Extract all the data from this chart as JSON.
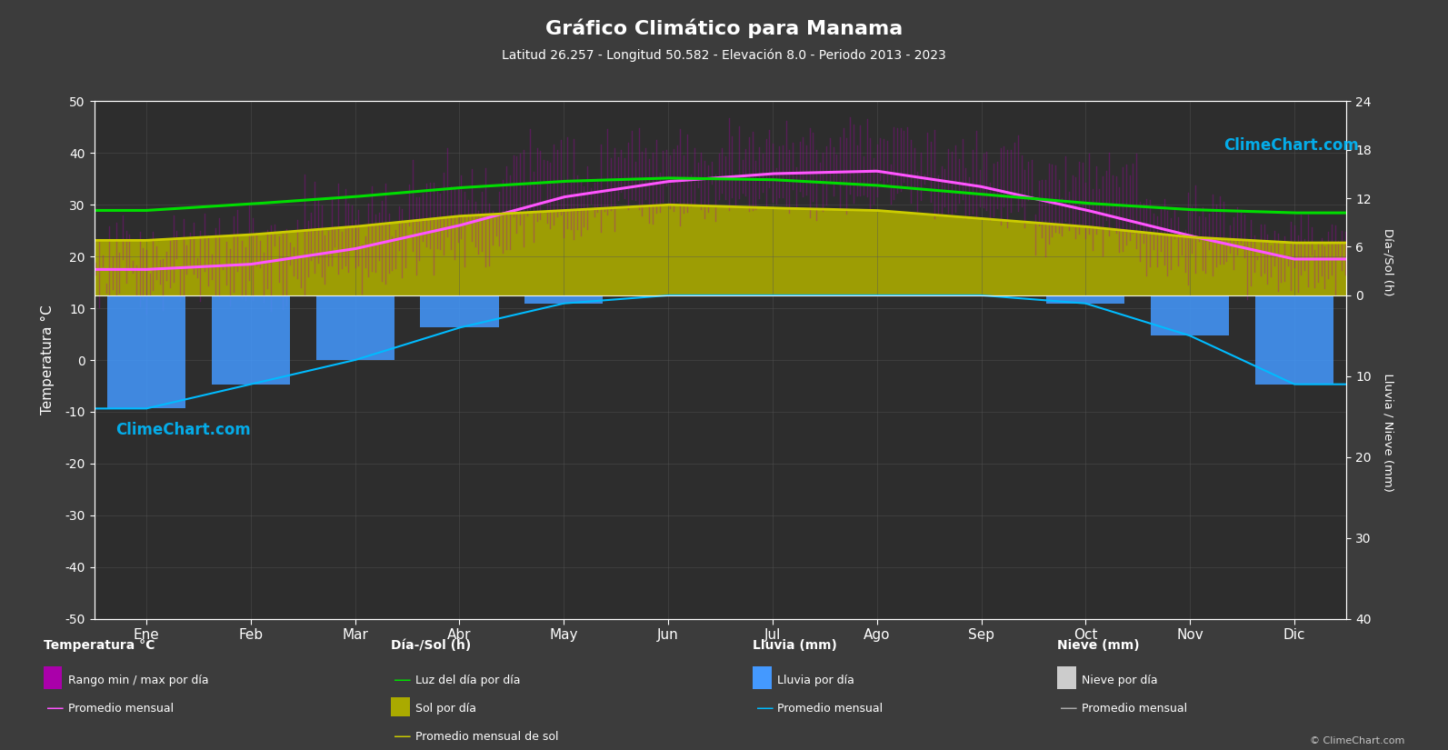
{
  "title": "Gráfico Climático para Manama",
  "subtitle": "Latitud 26.257 - Longitud 50.582 - Elevación 8.0 - Periodo 2013 - 2023",
  "months": [
    "Ene",
    "Feb",
    "Mar",
    "Abr",
    "May",
    "Jun",
    "Jul",
    "Ago",
    "Sep",
    "Oct",
    "Nov",
    "Dic"
  ],
  "temp_avg": [
    17.5,
    18.5,
    21.5,
    26.0,
    31.5,
    34.5,
    36.0,
    36.5,
    33.5,
    29.0,
    24.0,
    19.5
  ],
  "temp_max_avg": [
    22.0,
    24.0,
    28.0,
    33.5,
    38.5,
    41.0,
    42.0,
    42.5,
    39.5,
    35.0,
    29.5,
    24.0
  ],
  "temp_min_avg": [
    14.0,
    15.0,
    17.5,
    22.0,
    27.0,
    29.5,
    31.0,
    31.5,
    28.5,
    24.0,
    19.0,
    15.5
  ],
  "temp_max_daily_max": [
    28.0,
    30.0,
    36.0,
    41.0,
    45.0,
    46.5,
    47.5,
    47.5,
    44.5,
    40.0,
    35.0,
    29.0
  ],
  "temp_min_daily_min": [
    9.0,
    9.5,
    12.5,
    16.5,
    22.0,
    25.0,
    27.0,
    27.5,
    24.5,
    19.5,
    14.5,
    10.5
  ],
  "sunshine_hours_avg": [
    6.8,
    7.5,
    8.5,
    9.8,
    10.5,
    11.2,
    10.8,
    10.5,
    9.5,
    8.5,
    7.2,
    6.5
  ],
  "daylight_hours_avg": [
    10.5,
    11.3,
    12.2,
    13.3,
    14.1,
    14.5,
    14.3,
    13.6,
    12.5,
    11.4,
    10.6,
    10.2
  ],
  "rain_monthly_avg": [
    14.0,
    11.0,
    8.0,
    4.0,
    1.0,
    0.0,
    0.0,
    0.0,
    0.0,
    1.0,
    5.0,
    11.0
  ],
  "snow_monthly_avg": [
    0.0,
    0.0,
    0.0,
    0.0,
    0.0,
    0.0,
    0.0,
    0.0,
    0.0,
    0.0,
    0.0,
    0.0
  ],
  "bg_color": "#3c3c3c",
  "plot_bg_color": "#2d2d2d",
  "grid_color": "#555555",
  "text_color": "#ffffff",
  "temp_avg_color": "#ff55ff",
  "temp_range_fill_color": "#aa00aa",
  "temp_range_fill_alpha": 0.55,
  "daylight_color": "#00dd00",
  "sunshine_fill_color": "#aaaa00",
  "sunshine_fill_alpha": 0.9,
  "sunshine_line_color": "#cccc00",
  "rain_bar_color": "#4499ff",
  "rain_line_color": "#00bbff",
  "snow_bar_color": "#cccccc",
  "snow_line_color": "#aaaaaa",
  "temp_ylim": [
    -50,
    50
  ],
  "sun_ylim": [
    -40,
    24
  ]
}
